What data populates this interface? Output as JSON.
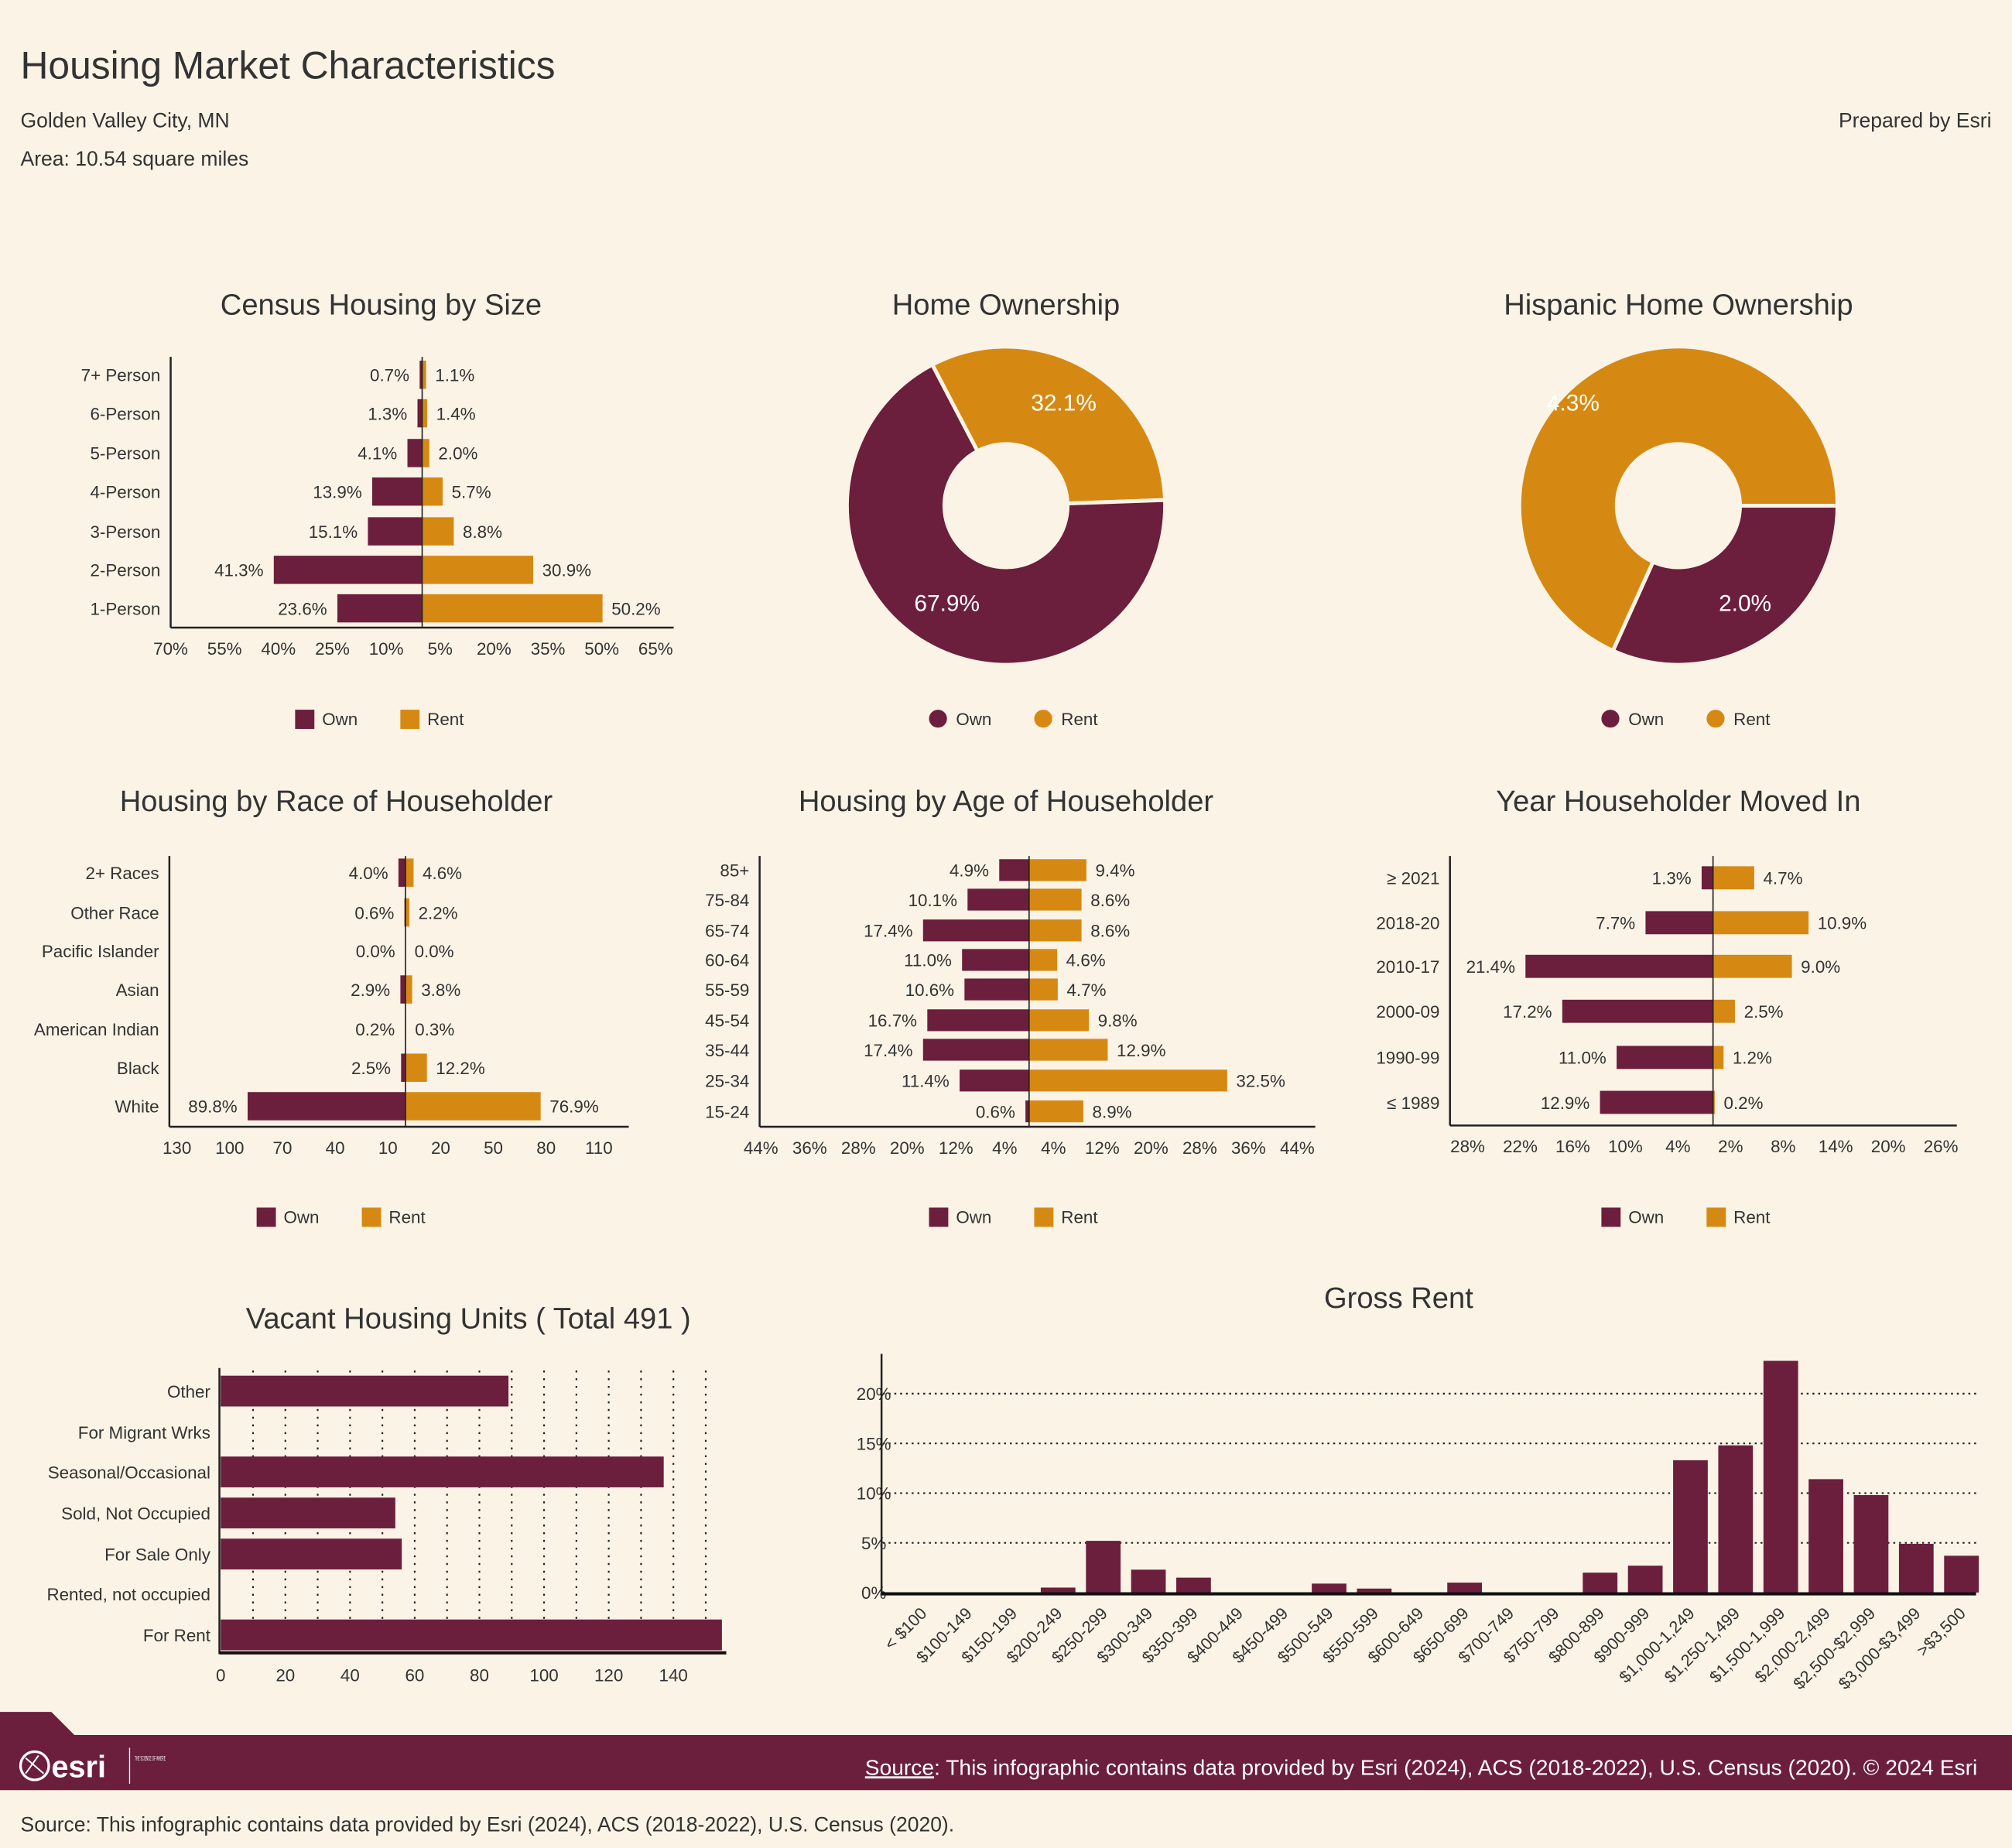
{
  "header": {
    "title": "Housing Market Characteristics",
    "location": "Golden Valley City, MN",
    "area": "Area: 10.54 square miles",
    "prepared_by": "Prepared by Esri"
  },
  "colors": {
    "own": "#6b1f3c",
    "rent": "#d68912",
    "background": "#fbf3e6"
  },
  "legend": {
    "own": "Own",
    "rent": "Rent"
  },
  "chart_data": [
    {
      "id": "size",
      "type": "bar",
      "orientation": "diverging-horizontal",
      "title": "Census Housing by Size",
      "categories": [
        "7+ Person",
        "6-Person",
        "5-Person",
        "4-Person",
        "3-Person",
        "2-Person",
        "1-Person"
      ],
      "series": [
        {
          "name": "Own",
          "values": [
            0.7,
            1.3,
            4.1,
            13.9,
            15.1,
            41.3,
            23.6
          ],
          "labels": [
            "0.7%",
            "1.3%",
            "4.1%",
            "13.9%",
            "15.1%",
            "41.3%",
            "23.6%"
          ]
        },
        {
          "name": "Rent",
          "values": [
            1.1,
            1.4,
            2.0,
            5.7,
            8.8,
            30.9,
            50.2
          ],
          "labels": [
            "1.1%",
            "1.4%",
            "2.0%",
            "5.7%",
            "8.8%",
            "30.9%",
            "50.2%"
          ]
        }
      ],
      "ticks": [
        {
          "label": "70%",
          "value": -70
        },
        {
          "label": "55%",
          "value": -55
        },
        {
          "label": "40%",
          "value": -40
        },
        {
          "label": "25%",
          "value": -25
        },
        {
          "label": "10%",
          "value": -10
        },
        {
          "label": "5%",
          "value": 5
        },
        {
          "label": "20%",
          "value": 20
        },
        {
          "label": "35%",
          "value": 35
        },
        {
          "label": "50%",
          "value": 50
        },
        {
          "label": "65%",
          "value": 65
        }
      ],
      "legend": "bottom"
    },
    {
      "id": "home",
      "type": "pie",
      "donut": true,
      "title": "Home Ownership",
      "slices": [
        {
          "name": "Own",
          "value": 67.9,
          "label": "67.9%"
        },
        {
          "name": "Rent",
          "value": 32.1,
          "label": "32.1%"
        }
      ],
      "legend": "bottom"
    },
    {
      "id": "hisp",
      "type": "pie",
      "donut": true,
      "title": "Hispanic Home Ownership",
      "slices": [
        {
          "name": "Own",
          "value": 2.0,
          "label": "2.0%"
        },
        {
          "name": "Rent",
          "value": 4.3,
          "label": "4.3%"
        }
      ],
      "legend": "bottom"
    },
    {
      "id": "race",
      "type": "bar",
      "orientation": "diverging-horizontal",
      "title": "Housing by Race of Householder",
      "categories": [
        "2+ Races",
        "Other Race",
        "Pacific Islander",
        "Asian",
        "American Indian",
        "Black",
        "White"
      ],
      "series": [
        {
          "name": "Own",
          "values": [
            4.0,
            0.6,
            0.0,
            2.9,
            0.2,
            2.5,
            89.8
          ],
          "labels": [
            "4.0%",
            "0.6%",
            "0.0%",
            "2.9%",
            "0.2%",
            "2.5%",
            "89.8%"
          ]
        },
        {
          "name": "Rent",
          "values": [
            4.6,
            2.2,
            0.0,
            3.8,
            0.3,
            12.2,
            76.9
          ],
          "labels": [
            "4.6%",
            "2.2%",
            "0.0%",
            "3.8%",
            "0.3%",
            "12.2%",
            "76.9%"
          ]
        }
      ],
      "ticks": [
        {
          "label": "130",
          "value": -130
        },
        {
          "label": "100",
          "value": -100
        },
        {
          "label": "70",
          "value": -70
        },
        {
          "label": "40",
          "value": -40
        },
        {
          "label": "10",
          "value": -10
        },
        {
          "label": "20",
          "value": 20
        },
        {
          "label": "50",
          "value": 50
        },
        {
          "label": "80",
          "value": 80
        },
        {
          "label": "110",
          "value": 110
        }
      ],
      "legend": "bottom"
    },
    {
      "id": "age",
      "type": "bar",
      "orientation": "diverging-horizontal",
      "title": "Housing by Age of Householder",
      "categories": [
        "85+",
        "75-84",
        "65-74",
        "60-64",
        "55-59",
        "45-54",
        "35-44",
        "25-34",
        "15-24"
      ],
      "series": [
        {
          "name": "Own",
          "values": [
            4.9,
            10.1,
            17.4,
            11.0,
            10.6,
            16.7,
            17.4,
            11.4,
            0.6
          ],
          "labels": [
            "4.9%",
            "10.1%",
            "17.4%",
            "11.0%",
            "10.6%",
            "16.7%",
            "17.4%",
            "11.4%",
            "0.6%"
          ]
        },
        {
          "name": "Rent",
          "values": [
            9.4,
            8.6,
            8.6,
            4.6,
            4.7,
            9.8,
            12.9,
            32.5,
            8.9
          ],
          "labels": [
            "9.4%",
            "8.6%",
            "8.6%",
            "4.6%",
            "4.7%",
            "9.8%",
            "12.9%",
            "32.5%",
            "8.9%"
          ]
        }
      ],
      "ticks": [
        {
          "label": "44%",
          "value": -44
        },
        {
          "label": "36%",
          "value": -36
        },
        {
          "label": "28%",
          "value": -28
        },
        {
          "label": "20%",
          "value": -20
        },
        {
          "label": "12%",
          "value": -12
        },
        {
          "label": "4%",
          "value": -4
        },
        {
          "label": "4%",
          "value": 4
        },
        {
          "label": "12%",
          "value": 12
        },
        {
          "label": "20%",
          "value": 20
        },
        {
          "label": "28%",
          "value": 28
        },
        {
          "label": "36%",
          "value": 36
        },
        {
          "label": "44%",
          "value": 44
        }
      ],
      "legend": "bottom"
    },
    {
      "id": "year",
      "type": "bar",
      "orientation": "diverging-horizontal",
      "title": "Year Householder Moved In",
      "categories": [
        "≥ 2021",
        "2018-20",
        "2010-17",
        "2000-09",
        "1990-99",
        "≤ 1989"
      ],
      "series": [
        {
          "name": "Own",
          "values": [
            1.3,
            7.7,
            21.4,
            17.2,
            11.0,
            12.9
          ],
          "labels": [
            "1.3%",
            "7.7%",
            "21.4%",
            "17.2%",
            "11.0%",
            "12.9%"
          ]
        },
        {
          "name": "Rent",
          "values": [
            4.7,
            10.9,
            9.0,
            2.5,
            1.2,
            0.2
          ],
          "labels": [
            "4.7%",
            "10.9%",
            "9.0%",
            "2.5%",
            "1.2%",
            "0.2%"
          ]
        }
      ],
      "ticks": [
        {
          "label": "28%",
          "value": -28
        },
        {
          "label": "22%",
          "value": -22
        },
        {
          "label": "16%",
          "value": -16
        },
        {
          "label": "10%",
          "value": -10
        },
        {
          "label": "4%",
          "value": -4
        },
        {
          "label": "2%",
          "value": 2
        },
        {
          "label": "8%",
          "value": 8
        },
        {
          "label": "14%",
          "value": 14
        },
        {
          "label": "20%",
          "value": 20
        },
        {
          "label": "26%",
          "value": 26
        }
      ],
      "legend": "bottom"
    },
    {
      "id": "vacant",
      "type": "bar",
      "orientation": "horizontal",
      "title": "Vacant Housing Units ( Total 491 )",
      "categories": [
        "Other",
        "For Migrant Wrks",
        "Seasonal/Occasional",
        "Sold, Not Occupied",
        "For Sale Only",
        "Rented, not occupied",
        "For Rent"
      ],
      "values": [
        89,
        0,
        137,
        54,
        56,
        0,
        155
      ],
      "xticks": [
        "0",
        "20",
        "40",
        "60",
        "80",
        "100",
        "120",
        "140"
      ],
      "xlim": [
        0,
        155
      ],
      "grid": "dotted vertical every 10"
    },
    {
      "id": "rent",
      "type": "bar",
      "orientation": "vertical",
      "title": "Gross Rent",
      "categories": [
        "< $100",
        "$100-149",
        "$150-199",
        "$200-249",
        "$250-299",
        "$300-349",
        "$350-399",
        "$400-449",
        "$450-499",
        "$500-549",
        "$550-599",
        "$600-649",
        "$650-699",
        "$700-749",
        "$750-799",
        "$800-899",
        "$900-999",
        "$1,000-1,249",
        "$1,250-1,499",
        "$1,500-1,999",
        "$2,000-2,499",
        "$2,500-$2,999",
        "$3,000-$3,499",
        ">$3,500"
      ],
      "values": [
        0,
        0,
        0,
        0.5,
        5.2,
        2.3,
        1.5,
        0,
        0,
        0.9,
        0.4,
        0,
        1.0,
        0,
        0,
        2.0,
        2.7,
        13.3,
        14.8,
        23.3,
        11.4,
        9.8,
        4.9,
        3.7
      ],
      "yticks": [
        "0%",
        "5%",
        "10%",
        "15%",
        "20%"
      ],
      "ylim": [
        0,
        24
      ],
      "grid": "dotted horizontal"
    }
  ],
  "footer": {
    "logo_text": "esri",
    "tagline": "THE SCIENCE OF WHERE",
    "source_link": "Source",
    "source_text": ": This infographic contains data provided by Esri (2024), ACS (2018-2022), U.S. Census (2020). © 2024 Esri",
    "bottom_source": "Source: This infographic contains data provided by Esri (2024), ACS (2018-2022), U.S. Census (2020)."
  }
}
